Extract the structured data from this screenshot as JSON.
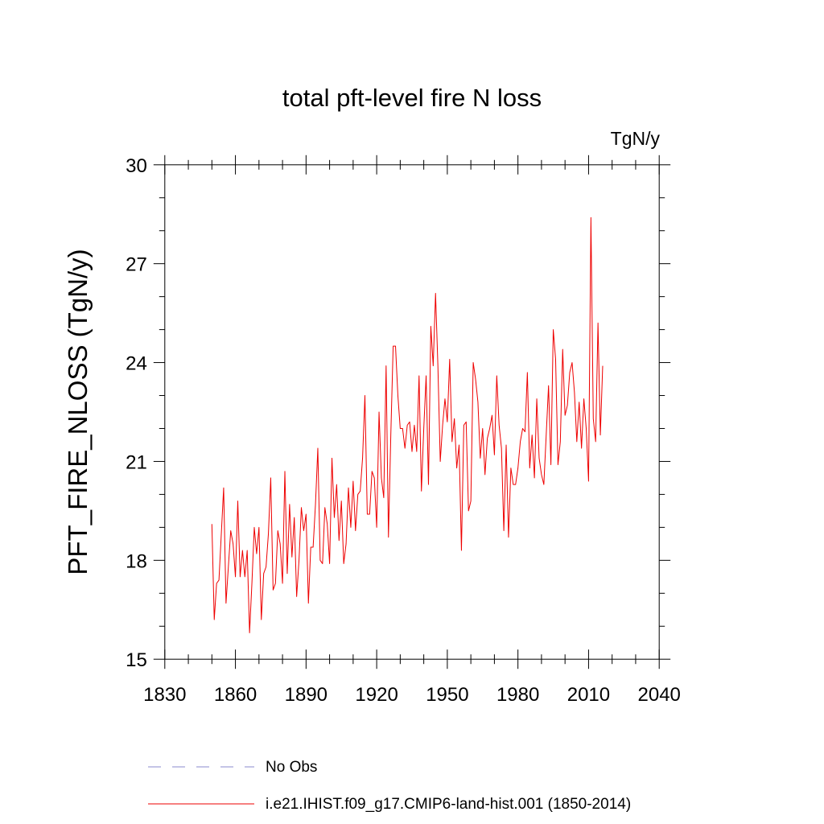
{
  "chart_data": {
    "type": "line",
    "title": "total pft-level fire N loss",
    "units_label": "TgN/y",
    "xlabel": "",
    "ylabel": "PFT_FIRE_NLOSS  (TgN/y)",
    "xlim": [
      1830,
      2040
    ],
    "ylim": [
      15,
      30
    ],
    "xticks": [
      1830,
      1860,
      1890,
      1920,
      1950,
      1980,
      2010,
      2040
    ],
    "xtick_labels": [
      "1830",
      "1860",
      "1890",
      "1920",
      "1950",
      "1980",
      "2010",
      "2040"
    ],
    "yticks": [
      15,
      18,
      21,
      24,
      27,
      30
    ],
    "ytick_labels": [
      "15",
      "18",
      "21",
      "24",
      "27",
      "30"
    ],
    "grid": false,
    "legend_position": "bottom",
    "legend": [
      {
        "label": "No Obs",
        "color": "#8888cc",
        "style": "dashed"
      },
      {
        "label": "i.e21.IHIST.f09_g17.CMIP6-land-hist.001 (1850-2014)",
        "color": "#ee0000",
        "style": "solid"
      }
    ],
    "series": [
      {
        "name": "i.e21.IHIST.f09_g17.CMIP6-land-hist.001 (1850-2014)",
        "color": "#ee0000",
        "x_start": 1850,
        "x_step": 1,
        "values": [
          19.1,
          16.2,
          17.3,
          17.4,
          18.8,
          20.2,
          16.7,
          17.8,
          18.9,
          18.5,
          17.5,
          19.8,
          17.5,
          18.3,
          17.5,
          18.3,
          15.8,
          17.3,
          19.0,
          18.2,
          19.0,
          16.2,
          17.6,
          17.8,
          18.8,
          20.5,
          17.1,
          17.3,
          18.9,
          18.5,
          17.3,
          20.7,
          17.6,
          19.7,
          18.1,
          19.3,
          16.9,
          18.0,
          19.6,
          18.9,
          19.4,
          16.7,
          18.4,
          18.4,
          19.7,
          21.4,
          18.0,
          17.9,
          19.6,
          19.1,
          17.9,
          21.1,
          19.3,
          20.3,
          18.6,
          19.8,
          17.9,
          18.5,
          20.2,
          19.0,
          20.4,
          18.9,
          20.0,
          20.1,
          21.1,
          23.0,
          19.4,
          19.4,
          20.7,
          20.5,
          19.0,
          22.5,
          20.5,
          19.9,
          23.9,
          18.7,
          21.8,
          24.5,
          24.5,
          23.0,
          22.0,
          22.0,
          21.4,
          22.1,
          22.2,
          21.3,
          22.1,
          21.3,
          23.6,
          20.1,
          22.0,
          23.6,
          20.3,
          25.1,
          23.9,
          26.1,
          23.9,
          21.0,
          22.1,
          22.9,
          22.2,
          24.1,
          21.6,
          22.3,
          20.8,
          21.5,
          18.3,
          22.1,
          22.2,
          19.5,
          19.8,
          24.0,
          23.5,
          22.8,
          21.1,
          22.0,
          20.6,
          21.7,
          22.0,
          22.4,
          21.2,
          23.6,
          22.1,
          21.4,
          18.9,
          21.5,
          18.7,
          20.8,
          20.3,
          20.3,
          20.8,
          21.6,
          22.0,
          21.9,
          23.7,
          20.8,
          21.8,
          20.5,
          22.9,
          21.1,
          20.6,
          20.3,
          21.8,
          23.3,
          20.9,
          25.0,
          24.1,
          20.9,
          21.6,
          24.4,
          22.4,
          22.7,
          23.7,
          24.0,
          23.1,
          21.6,
          22.8,
          21.4,
          22.9,
          22.0,
          20.4,
          28.4,
          22.3,
          21.6,
          25.2,
          21.8,
          23.9
        ]
      }
    ]
  }
}
